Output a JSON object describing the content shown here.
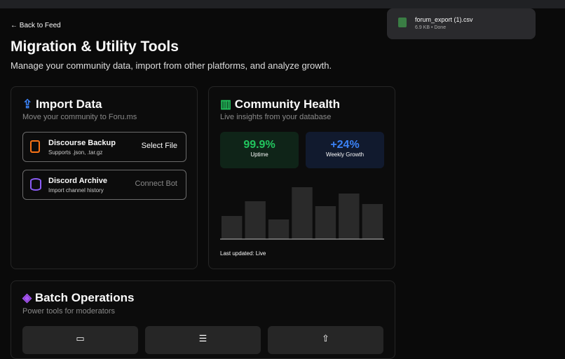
{
  "download": {
    "filename": "forum_export (1).csv",
    "status": "6.9 KB • Done"
  },
  "nav": {
    "back": "Back to Feed"
  },
  "header": {
    "title": "Migration & Utility Tools",
    "subtitle": "Manage your community data, import from other platforms, and analyze growth."
  },
  "import": {
    "title": "Import Data",
    "subtitle": "Move your community to Foru.ms",
    "items": [
      {
        "name": "Discourse Backup",
        "desc": "Supports .json, .tar.gz",
        "action": "Select File"
      },
      {
        "name": "Discord Archive",
        "desc": "Import channel history",
        "action": "Connect Bot"
      }
    ]
  },
  "health": {
    "title": "Community Health",
    "subtitle": "Live insights from your database",
    "stats": [
      {
        "value": "99.9%",
        "label": "Uptime"
      },
      {
        "value": "+24%",
        "label": "Weekly Growth"
      }
    ],
    "chart_data": {
      "type": "bar",
      "values": [
        33,
        54,
        28,
        74,
        47,
        65,
        50
      ],
      "color": "#2a2a2a"
    },
    "footer": "Last updated: Live"
  },
  "batch": {
    "title": "Batch Operations",
    "subtitle": "Power tools for moderators"
  }
}
